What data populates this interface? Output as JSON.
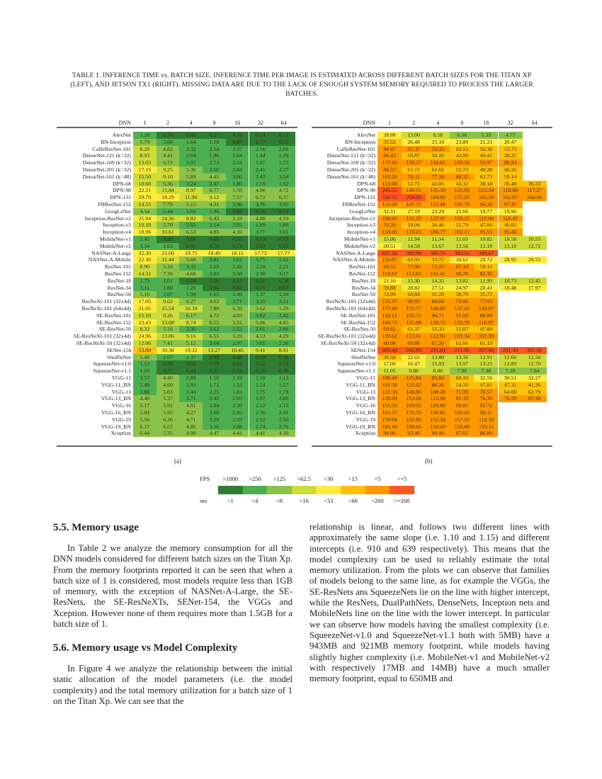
{
  "caption": "TABLE 1. INFERENCE TIME vs. BATCH SIZE. INFERENCE TIME PER IMAGE IS ESTIMATED ACROSS DIFFERENT BATCH SIZES FOR THE TITAN XP (LEFT), AND JETSON TX1 (RIGHT). MISSING DATA ARE DUE TO THE LACK OF ENOUGH SYSTEM MEMORY REQUIRED TO PROCESS THE LARGER BATCHES.",
  "table": {
    "header": [
      "DNN",
      "1",
      "2",
      "4",
      "8",
      "16",
      "32",
      "64"
    ],
    "sub_a": "(a)",
    "sub_b": "(b)",
    "rows": [
      {
        "name": "AlexNet",
        "a": [
          "1.28",
          "0.70",
          "0.48",
          "0.27",
          "0.18",
          "0.14",
          "0.15"
        ],
        "b": [
          "28.88",
          "13.00",
          "8.58",
          "6.56",
          "5.39",
          "4.77",
          null
        ]
      },
      {
        "name": "BN-Inception",
        "a": [
          "5.79",
          "3.00",
          "1.64",
          "1.10",
          "0.87",
          "0.77",
          "0.71"
        ],
        "b": [
          "35.52",
          "26.48",
          "25.10",
          "23.89",
          "21.21",
          "20.47",
          null
        ]
      },
      {
        "name": "CaffeResNet-101",
        "a": [
          "8.20",
          "4.82",
          "3.32",
          "2.54",
          "2.27",
          "2.16",
          "2.08"
        ],
        "b": [
          "84.47",
          "91.37",
          "70.33",
          "63.53",
          "56.38",
          "53.73",
          null
        ]
      },
      {
        "name": "DenseNet-121 (k=32)",
        "a": [
          "8.93",
          "4.41",
          "2.64",
          "1.96",
          "1.64",
          "1.44",
          "1.39"
        ],
        "b": [
          "66.43",
          "50.87",
          "50.20",
          "43.89",
          "40.41",
          "38.22",
          null
        ]
      },
      {
        "name": "DenseNet-169 (k=32)",
        "a": [
          "13.03",
          "6.72",
          "3.97",
          "2.73",
          "2.14",
          "1.87",
          "1.75"
        ],
        "b": [
          "137.96",
          "130.27",
          "110.82",
          "100.56",
          "92.97",
          "88.94",
          null
        ]
      },
      {
        "name": "DenseNet-201 (k=32)",
        "a": [
          "17.15",
          "9.25",
          "5.36",
          "3.66",
          "2.84",
          "2.41",
          "2.27"
        ],
        "b": [
          "84.57",
          "61.71",
          "62.62",
          "53.73",
          "49.28",
          "46.26",
          null
        ]
      },
      {
        "name": "DenseNet-161 (k=48)",
        "a": [
          "15.50",
          "9.10",
          "5.89",
          "4.45",
          "3.66",
          "3.43",
          "3.24"
        ],
        "b": [
          "103.20",
          "76.11",
          "77.10",
          "68.32",
          "62.73",
          "59.14",
          null
        ]
      },
      {
        "name": "DPN-68",
        "a": [
          "10.68",
          "5.36",
          "3.24",
          "2.47",
          "1.80",
          "1.59",
          "1.52"
        ],
        "b": [
          "113.08",
          "52.73",
          "42.85",
          "43.32",
          "38.18",
          "36.40",
          "36.22"
        ]
      },
      {
        "name": "DPN-98",
        "a": [
          "22.31",
          "13.84",
          "8.97",
          "6.77",
          "5.59",
          "4.96",
          "4.72"
        ],
        "b": [
          "243.51",
          "148.51",
          "135.30",
          "125.92",
          "123.34",
          "118.68",
          "117.27"
        ]
      },
      {
        "name": "DPN-131",
        "a": [
          "29.70",
          "18.29",
          "11.96",
          "9.12",
          "7.57",
          "6.72",
          "6.37"
        ],
        "b": [
          "330.15",
          "204.69",
          "184.89",
          "172.25",
          "165.59",
          "162.67",
          "160.66"
        ]
      },
      {
        "name": "FBResNet-152",
        "a": [
          "14.55",
          "7.79",
          "5.15",
          "4.31",
          "3.96",
          "3.76",
          "3.65"
        ],
        "b": [
          "133.68",
          "147.75",
          "113.48",
          "105.78",
          "94.26",
          "97.47",
          null
        ]
      },
      {
        "name": "GoogLeNet",
        "a": [
          "4.54",
          "2.44",
          "1.65",
          "1.06",
          "0.86",
          "0.76",
          "0.72"
        ],
        "b": [
          "32.11",
          "27.19",
          "23.29",
          "21.66",
          "19.77",
          "19.96",
          null
        ]
      },
      {
        "name": "Inception-ResNet-v2",
        "a": [
          "25.94",
          "14.36",
          "8.82",
          "6.43",
          "5.19",
          "4.88",
          "4.59"
        ],
        "b": [
          "198.95",
          "141.29",
          "127.97",
          "130.25",
          "117.99",
          "116.47",
          null
        ]
      },
      {
        "name": "Inception-v3",
        "a": [
          "10.10",
          "5.70",
          "3.65",
          "2.54",
          "2.05",
          "1.89",
          "1.80"
        ],
        "b": [
          "79.39",
          "59.04",
          "56.46",
          "51.79",
          "47.60",
          "46.85",
          null
        ]
      },
      {
        "name": "Inception-v4",
        "a": [
          "18.96",
          "10.61",
          "6.53",
          "4.85",
          "4.10",
          "3.77",
          "3.61"
        ],
        "b": [
          "158.00",
          "120.23",
          "106.77",
          "102.21",
          "95.51",
          "95.40",
          null
        ]
      },
      {
        "name": "MobileNet-v1",
        "a": [
          "2.45",
          "0.89",
          "0.68",
          "0.60",
          "0.55",
          "0.53",
          "0.53"
        ],
        "b": [
          "15.06",
          "11.94",
          "11.34",
          "11.03",
          "10.82",
          "10.58",
          "10.55"
        ]
      },
      {
        "name": "MobileNet-v2",
        "a": [
          "3.34",
          "1.63",
          "0.95",
          "0.78",
          "0.72",
          "0.63",
          "0.61"
        ],
        "b": [
          "20.51",
          "14.58",
          "13.67",
          "13.56",
          "13.18",
          "13.10",
          "12.72"
        ]
      },
      {
        "name": "NASNet-A-Large",
        "a": [
          "32.30",
          "23.00",
          "19.75",
          "18.49",
          "18.11",
          "17.73",
          "17.77"
        ],
        "b": [
          "437.20",
          "399.99",
          "385.75",
          "383.55",
          "389.67",
          null,
          null
        ]
      },
      {
        "name": "NASNet-A-Mobile",
        "a": [
          "22.36",
          "11.44",
          "5.60",
          "2.81",
          "1.61",
          "1.75",
          "1.51"
        ],
        "b": [
          "133.87",
          "62.91",
          "33.72",
          "30.62",
          "29.72",
          "28.92",
          "28.55"
        ]
      },
      {
        "name": "ResNet-101",
        "a": [
          "8.90",
          "5.16",
          "3.32",
          "2.69",
          "2.42",
          "2.29",
          "2.21"
        ],
        "b": [
          "84.52",
          "77.90",
          "71.23",
          "67.14",
          "58.11",
          null,
          null
        ]
      },
      {
        "name": "ResNet-152",
        "a": [
          "14.31",
          "7.36",
          "4.68",
          "3.83",
          "3.50",
          "3.30",
          "3.17"
        ],
        "b": [
          "124.67",
          "113.65",
          "101.41",
          "96.76",
          "82.35",
          null,
          null
        ]
      },
      {
        "name": "ResNet-18",
        "a": [
          "1.79",
          "1.01",
          "0.70",
          "0.56",
          "0.51",
          "0.41",
          "0.38"
        ],
        "b": [
          "21.16",
          "15.30",
          "14.35",
          "13.82",
          "11.99",
          "10.73",
          "12.45"
        ]
      },
      {
        "name": "ResNet-34",
        "a": [
          "3.11",
          "1.80",
          "1.20",
          "0.96",
          "0.82",
          "0.71",
          "0.67"
        ],
        "b": [
          "39.88",
          "28.82",
          "27.51",
          "24.97",
          "20.41",
          "18.48",
          "17.97"
        ]
      },
      {
        "name": "ResNet-50",
        "a": [
          "5.10",
          "2.87",
          "1.99",
          "1.65",
          "1.49",
          "1.37",
          "1.34"
        ],
        "b": [
          "53.09",
          "44.84",
          "41.20",
          "38.79",
          "35.72",
          null,
          null
        ]
      },
      {
        "name": "ResNeXt-101 (32x4d)",
        "a": [
          "17.05",
          "9.02",
          "6.27",
          "4.62",
          "3.71",
          "3.25",
          "3.11"
        ],
        "b": [
          "115.37",
          "90.93",
          "84.64",
          "79.66",
          "77.63",
          null,
          null
        ]
      },
      {
        "name": "ResNeXt-101 (64x4d)",
        "a": [
          "21.05",
          "15.54",
          "10.39",
          "7.80",
          "6.39",
          "5.62",
          "5.29"
        ],
        "b": [
          "177.40",
          "155.77",
          "144.82",
          "137.43",
          "134.07",
          null,
          null
        ]
      },
      {
        "name": "SE-ResNet-101",
        "a": [
          "15.10",
          "9.26",
          "6.17",
          "4.72",
          "4.03",
          "3.62",
          "3.42"
        ],
        "b": [
          "118.13",
          "105.11",
          "96.71",
          "91.68",
          "80.99",
          null,
          null
        ]
      },
      {
        "name": "SE-ResNet-152",
        "a": [
          "23.43",
          "13.08",
          "8.74",
          "6.55",
          "5.51",
          "5.06",
          "4.85"
        ],
        "b": [
          "169.73",
          "155.08",
          "139.72",
          "133.59",
          "116.97",
          null,
          null
        ]
      },
      {
        "name": "SE-ResNet-50",
        "a": [
          "8.32",
          "5.16",
          "3.36",
          "2.62",
          "2.22",
          "2.01",
          "2.06"
        ],
        "b": [
          "69.65",
          "61.37",
          "55.33",
          "51.87",
          "47.80",
          null,
          null
        ]
      },
      {
        "name": "SE-ResNeXt-101 (32x4d)",
        "a": [
          "24.96",
          "13.86",
          "9.16",
          "6.55",
          "5.29",
          "4.53",
          "4.29"
        ],
        "b": [
          "139.62",
          "122.01",
          "112.05",
          "105.34",
          "102.39",
          null,
          null
        ]
      },
      {
        "name": "SE-ResNeXt-50 (32x4d)",
        "a": [
          "12.06",
          "7.41",
          "5.12",
          "3.64",
          "2.97",
          "3.01",
          "2.56"
        ],
        "b": [
          "80.08",
          "69.86",
          "67.20",
          "62.66",
          "61.19",
          null,
          null
        ]
      },
      {
        "name": "SENet-154",
        "a": [
          "53.80",
          "30.30",
          "19.32",
          "13.27",
          "10.45",
          "9.41",
          "8.91"
        ],
        "b": [
          "309.48",
          "240.80",
          "221.84",
          "211.00",
          "207.06",
          "201.49",
          "201.66"
        ]
      },
      {
        "name": "ShuffleNet",
        "a": [
          "5.40",
          "2.67",
          "1.37",
          "0.82",
          "0.66",
          "0.59",
          "0.56"
        ],
        "b": [
          "36.58",
          "22.61",
          "13.80",
          "13.36",
          "12.91",
          "12.66",
          "12.50"
        ]
      },
      {
        "name": "SqueezeNet-v1.0",
        "a": [
          "1.53",
          "0.84",
          "0.66",
          "0.59",
          "0.54",
          "0.52",
          "0.53"
        ],
        "b": [
          "17.00",
          "16.47",
          "15.03",
          "13.97",
          "13.25",
          "12.89",
          "12.70"
        ]
      },
      {
        "name": "SqueezeNet-v1.1",
        "a": [
          "1.60",
          "0.77",
          "0.44",
          "0.37",
          "0.32",
          "0.31",
          "0.30"
        ],
        "b": [
          "11.05",
          "9.88",
          "8.80",
          "7.90",
          "7.38",
          "7.20",
          "7.04"
        ]
      },
      {
        "name": "VGG-11",
        "a": [
          "3.57",
          "4.40",
          "2.89",
          "1.56",
          "1.19",
          "1.10",
          "1.13"
        ],
        "b": [
          "106.44",
          "125.84",
          "85.84",
          "60.10",
          "32.56",
          "30.51",
          "32.27"
        ]
      },
      {
        "name": "VGG-11_BN",
        "a": [
          "3.49",
          "4.60",
          "2.99",
          "1.71",
          "1.33",
          "1.24",
          "1.27"
        ],
        "b": [
          "101.58",
          "122.82",
          "86.26",
          "54.50",
          "47.81",
          "47.31",
          "41.26"
        ]
      },
      {
        "name": "VGG-13",
        "a": [
          "3.88",
          "5.03",
          "3.44",
          "2.25",
          "1.83",
          "1.75",
          "1.79"
        ],
        "b": [
          "122.59",
          "148.80",
          "108.28",
          "75.99",
          "70.57",
          "64.88",
          "62.79"
        ]
      },
      {
        "name": "VGG-13_BN",
        "a": [
          "4.40",
          "5.37",
          "3.71",
          "2.42",
          "2.05",
          "1.97",
          "2.00"
        ],
        "b": [
          "129.69",
          "153.68",
          "113.90",
          "81.19",
          "76.39",
          "70.59",
          "67.38"
        ]
      },
      {
        "name": "VGG-16",
        "a": [
          "5.17",
          "5.91",
          "4.01",
          "2.84",
          "2.20",
          "2.12",
          "2.15"
        ],
        "b": [
          "151.52",
          "169.92",
          "129.89",
          "96.81",
          "91.72",
          null,
          null
        ]
      },
      {
        "name": "VGG-16_BN",
        "a": [
          "5.04",
          "5.95",
          "4.27",
          "3.06",
          "2.45",
          "2.36",
          "2.41"
        ],
        "b": [
          "163.37",
          "176.35",
          "136.85",
          "103.45",
          "98.11",
          null,
          null
        ]
      },
      {
        "name": "VGG-19",
        "a": [
          "5.50",
          "6.26",
          "4.71",
          "3.29",
          "2.59",
          "2.52",
          "2.50"
        ],
        "b": [
          "178.04",
          "192.86",
          "152.28",
          "117.92",
          "112.39",
          null,
          null
        ]
      },
      {
        "name": "VGG-19_BN",
        "a": [
          "6.17",
          "6.67",
          "4.86",
          "3.56",
          "2.88",
          "2.74",
          "2.76"
        ],
        "b": [
          "185.18",
          "198.66",
          "159.20",
          "124.88",
          "119.15",
          null,
          null
        ]
      },
      {
        "name": "Xception",
        "a": [
          "6.44",
          "5.35",
          "4.90",
          "4.47",
          "4.41",
          "4.41",
          "4.36"
        ],
        "b": [
          "98.96",
          "93.40",
          "90.49",
          "87.65",
          "86.89",
          null,
          null
        ]
      }
    ]
  },
  "legend": {
    "fps_label": "FPS",
    "ms_label": "ms",
    "bins": [
      {
        "fps": ">1000",
        "ms": "<1",
        "max_ms": 1,
        "color": "#2f7d32"
      },
      {
        "fps": ">250",
        "ms": "<4",
        "max_ms": 4,
        "color": "#4caf50"
      },
      {
        "fps": ">125",
        "ms": "<8",
        "max_ms": 8,
        "color": "#8bc34a"
      },
      {
        "fps": ">62.5",
        "ms": "<16",
        "max_ms": 16,
        "color": "#cddc39"
      },
      {
        "fps": ">30",
        "ms": "<33",
        "max_ms": 33,
        "color": "#ffeb3b"
      },
      {
        "fps": ">15",
        "ms": "<66",
        "max_ms": 66,
        "color": "#ffc107"
      },
      {
        "fps": ">5",
        "ms": "<200",
        "max_ms": 200,
        "color": "#ff9800"
      },
      {
        "fps": "<=5",
        "ms": ">=200",
        "max_ms": null,
        "color": "#ff5722"
      }
    ]
  },
  "sections": [
    {
      "heading": "5.5. Memory usage",
      "text": "In Table 2 we analyze the memory consumption for all the DNN models considered for different batch sizes on the Titan Xp. From the memory footprints reported it can be seen that when a batch size of 1 is considered, most models require less than 1GB of memory, with the exception of NASNet-A-Large, the SE-ResNets, the SE-ResNeXTs, SENet-154, the VGGs and Xception. However none of them requires more than 1.5GB for a batch size of 1."
    },
    {
      "heading": "5.6. Memory usage vs Model Complexity",
      "text": "In Figure 4 we analyze the relationship between the initial static allocation of the model parameters (i.e. the model complexity) and the total memory utilization for a batch size of 1 on the Titan Xp. We can see that the"
    }
  ],
  "right_column_text": "relationship is linear, and follows two different lines with approximately the same slope (i.e. 1.10 and 1.15) and different intercepts (i.e. 910 and 639 respectively). This means that the model complexity can be used to reliably estimate the total memory utilization. From the plots we can observe that families of models belong to the same line, as for example the VGGs, the SE-ResNets ans SqueezeNets lie on the line with higher intercept, while the ResNets, DualPathNets, DenseNets, Inception nets and MobileNets line on the line with the lower intercept. In particular we can observe how models having the smallest complexity (i.e. SqueezeNet-v1.0 and SqueezeNet-v1.1 both with 5MB) have a 943MB and 921MB memory footprint, while models having slightly higher complexity (i.e. MobileNet-v1 and MobileNet-v2 with respectively 17MB and 14MB) have a much smaller memory footprint, equal to 650MB and"
}
